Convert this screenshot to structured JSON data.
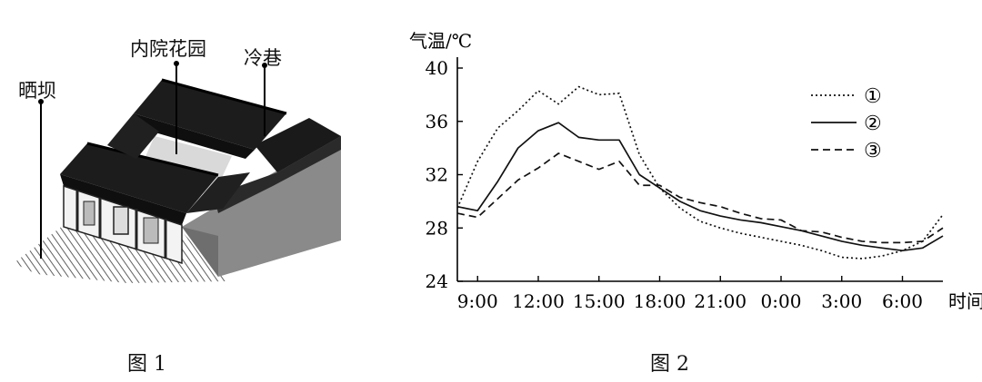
{
  "figure1": {
    "labels": {
      "garden": "内院花园",
      "alley": "冷巷",
      "yard": "晒坝"
    },
    "caption": "图 1"
  },
  "figure2": {
    "caption": "图 2"
  },
  "chart_data": {
    "type": "line",
    "ylabel": "气温/℃",
    "xlabel": "时间",
    "ylim": [
      24,
      40
    ],
    "yticks": [
      24,
      28,
      32,
      36,
      40
    ],
    "xtick_labels": [
      "9:00",
      "12:00",
      "15:00",
      "18:00",
      "21:00",
      "0:00",
      "3:00",
      "6:00"
    ],
    "x_hours_since_0800": [
      0,
      1,
      2,
      3,
      4,
      5,
      6,
      7,
      8,
      9,
      10,
      11,
      12,
      13,
      14,
      15,
      16,
      17,
      18,
      19,
      20,
      21,
      22,
      23,
      24
    ],
    "legend_position": "top-right",
    "series": [
      {
        "name": "①",
        "style": "dotted",
        "values": [
          29.5,
          33.0,
          35.5,
          36.8,
          38.3,
          37.3,
          38.6,
          38.0,
          38.1,
          33.5,
          31.0,
          29.5,
          28.5,
          28.0,
          27.6,
          27.3,
          27.0,
          26.7,
          26.3,
          25.8,
          25.7,
          25.9,
          26.3,
          27.0,
          29.0
        ]
      },
      {
        "name": "②",
        "style": "solid",
        "values": [
          29.6,
          29.3,
          31.5,
          34.0,
          35.3,
          35.9,
          34.8,
          34.6,
          34.6,
          32.0,
          31.0,
          30.0,
          29.3,
          28.9,
          28.6,
          28.4,
          28.1,
          27.8,
          27.4,
          27.0,
          26.7,
          26.5,
          26.3,
          26.5,
          27.4
        ]
      },
      {
        "name": "③",
        "style": "dashed",
        "values": [
          29.1,
          28.8,
          30.2,
          31.6,
          32.5,
          33.6,
          33.0,
          32.4,
          33.0,
          31.2,
          31.2,
          30.3,
          29.9,
          29.6,
          29.1,
          28.7,
          28.6,
          27.8,
          27.7,
          27.3,
          27.0,
          26.9,
          26.9,
          27.0,
          28.0
        ]
      }
    ]
  }
}
